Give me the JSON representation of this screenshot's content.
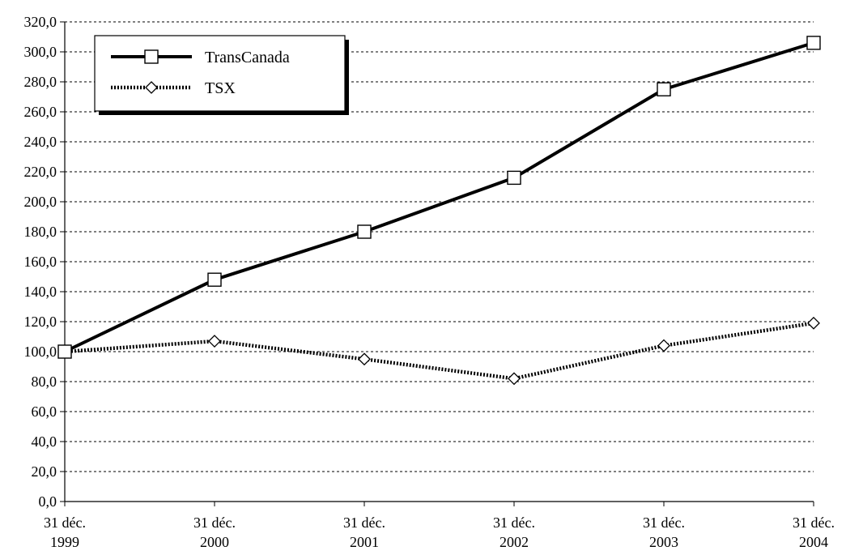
{
  "chart_data": {
    "type": "line",
    "title": "",
    "xlabel": "",
    "ylabel": "",
    "categories": [
      [
        "31 déc.",
        "1999"
      ],
      [
        "31 déc.",
        "2000"
      ],
      [
        "31 déc.",
        "2001"
      ],
      [
        "31 déc.",
        "2002"
      ],
      [
        "31 déc.",
        "2003"
      ],
      [
        "31 déc.",
        "2004"
      ]
    ],
    "ylim": [
      0,
      320
    ],
    "ytick_step": 20,
    "ytick_labels": [
      "0,0",
      "20,0",
      "40,0",
      "60,0",
      "80,0",
      "100,0",
      "120,0",
      "140,0",
      "160,0",
      "180,0",
      "200,0",
      "220,0",
      "240,0",
      "260,0",
      "280,0",
      "300,0",
      "320,0"
    ],
    "grid": "horizontal dotted",
    "legend_position": "top-left",
    "series": [
      {
        "name": "TransCanada",
        "values": [
          100,
          148,
          180,
          216,
          275,
          306
        ],
        "line_style": "solid",
        "marker": "square",
        "color": "#000000"
      },
      {
        "name": "TSX",
        "values": [
          100,
          107,
          95,
          82,
          104,
          119
        ],
        "line_style": "dotted",
        "marker": "diamond",
        "color": "#000000"
      }
    ]
  }
}
